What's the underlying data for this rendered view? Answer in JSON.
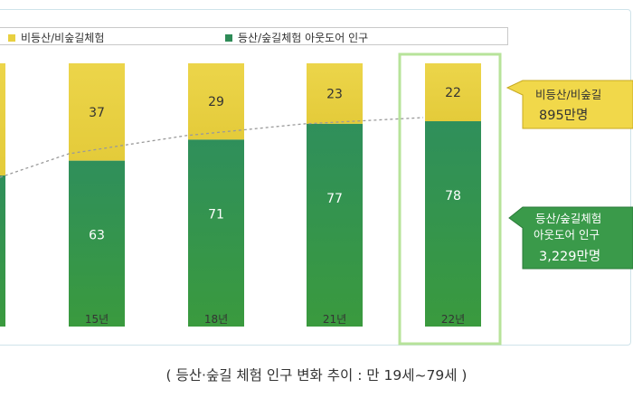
{
  "chart_data": {
    "type": "bar",
    "stacked": true,
    "categories": [
      "",
      "15년",
      "18년",
      "21년",
      "22년"
    ],
    "series": [
      {
        "name": "등산/숲길체험 아웃도어 인구",
        "color": "#2e8b57",
        "values": [
          null,
          63,
          71,
          77,
          78
        ]
      },
      {
        "name": "비등산/비숲길체험",
        "color": "#e8d040",
        "values": [
          null,
          37,
          29,
          23,
          22
        ]
      }
    ],
    "ylim": [
      0,
      100
    ],
    "trend_line": "dotted",
    "highlight_category": "22년",
    "legend_position": "top",
    "title": "",
    "xlabel": "",
    "ylabel": ""
  },
  "callouts": {
    "upper": {
      "line1": "비등산/비숲길",
      "line2": "895만명"
    },
    "lower": {
      "line1": "등산/숲길체험",
      "line2": "아웃도어 인구",
      "line3": "3,229만명"
    }
  },
  "caption": "( 등산·숲길 체험 인구 변화 추이 : 만 19세~79세 )"
}
